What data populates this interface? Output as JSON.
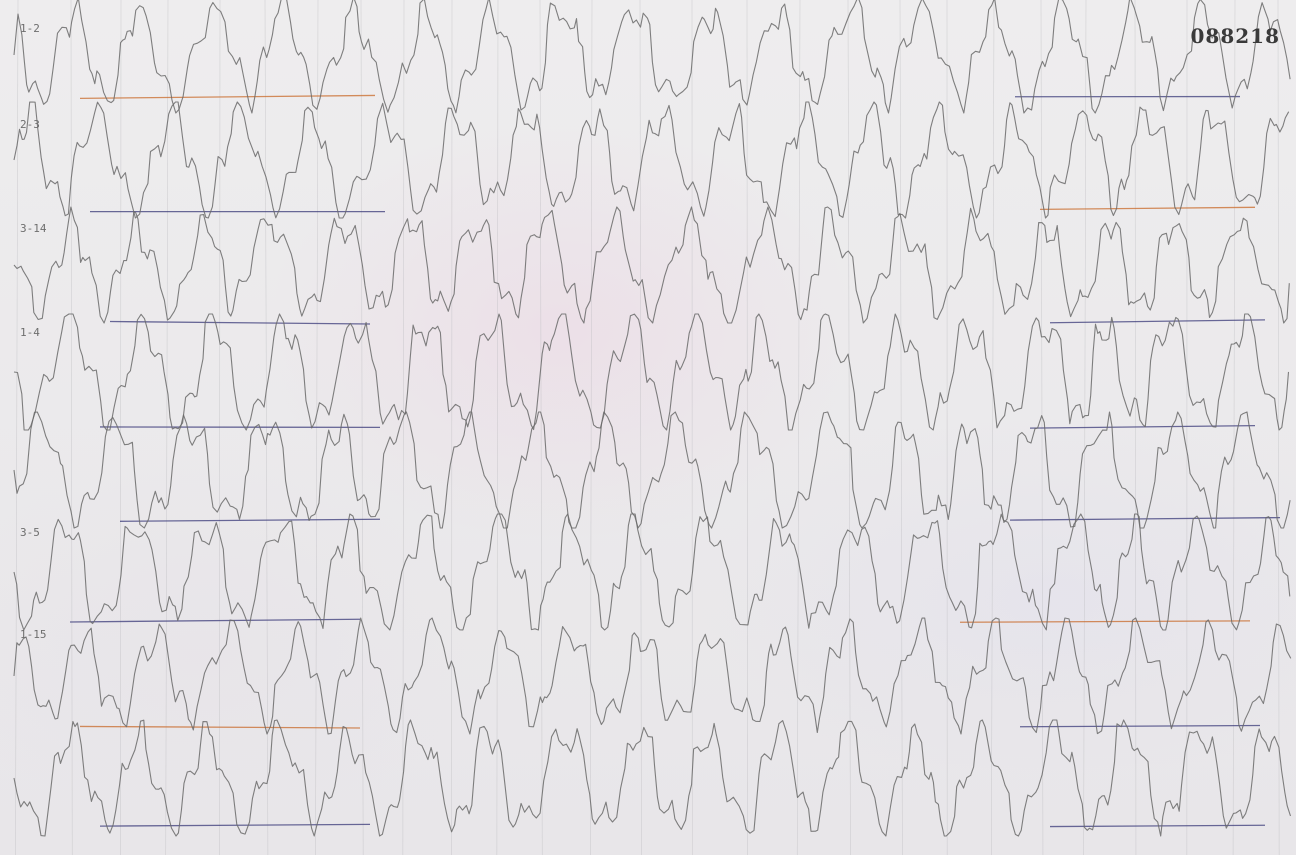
{
  "record": {
    "number": "088218",
    "channel_labels": [
      "1-2",
      "2-3",
      "3-14",
      "1-4",
      "",
      "3-5",
      "1-15",
      ""
    ]
  },
  "colors": {
    "paper": "#ecebec",
    "trace": "#6a6a6a",
    "gridline": "#b9b9bd",
    "calibration_mark": "#3b3b7a",
    "ink_accent": "#c96a2a"
  }
}
